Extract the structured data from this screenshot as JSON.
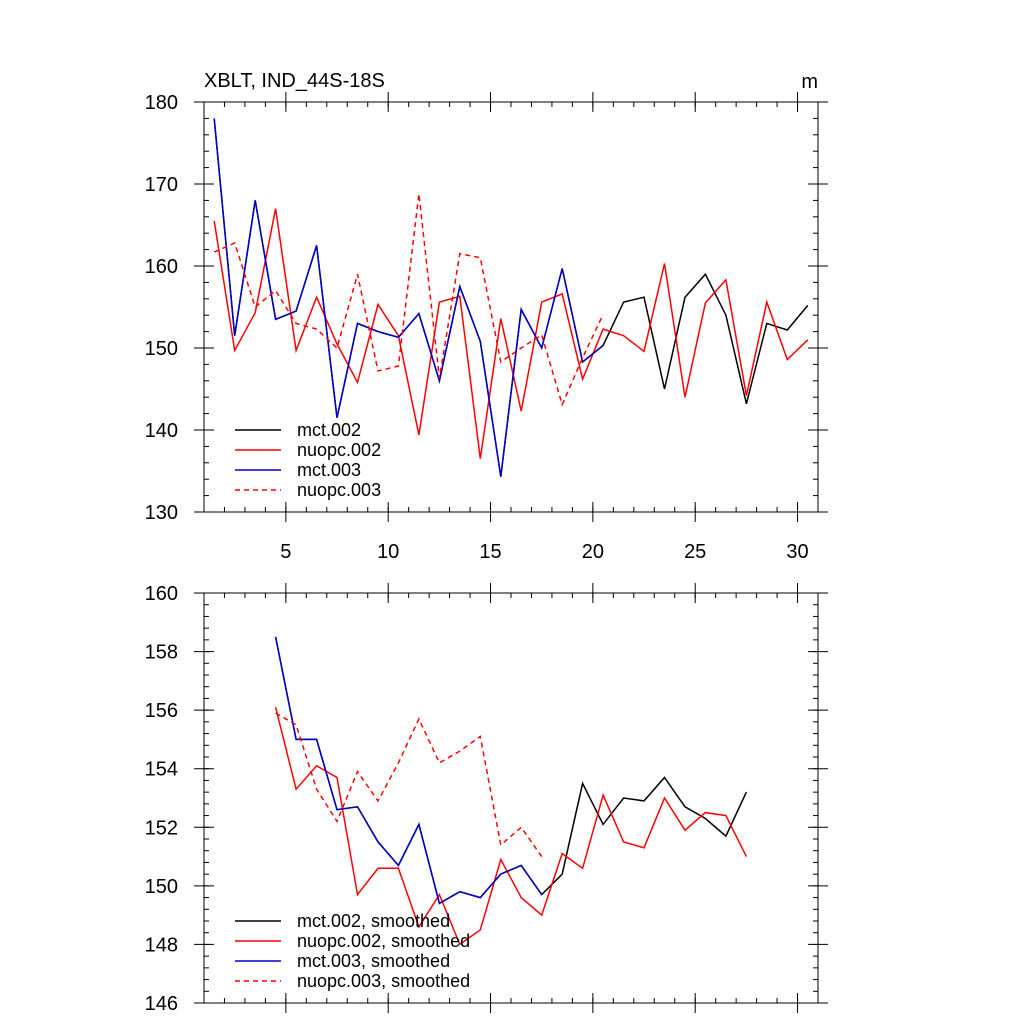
{
  "chart_data": [
    {
      "type": "line",
      "title": "XBLT, IND_44S-18S",
      "units": "m",
      "xlabel": "",
      "ylabel": "",
      "xlim": [
        1,
        31
      ],
      "ylim": [
        130,
        180
      ],
      "xticks": [
        5,
        10,
        15,
        20,
        25,
        30
      ],
      "yticks": [
        130,
        140,
        150,
        160,
        170,
        180
      ],
      "legend_position": "bottom-left",
      "series": [
        {
          "name": "mct.002",
          "color": "#000000",
          "dash": "solid",
          "x": [
            1.5,
            2.5,
            3.5,
            4.5,
            5.5,
            6.5,
            7.5,
            8.5,
            9.5,
            10.5,
            11.5,
            12.5,
            13.5,
            14.5,
            15.5,
            16.5,
            17.5,
            18.5,
            19.5,
            20.5,
            21.5,
            22.5,
            23.5,
            24.5,
            25.5,
            26.5,
            27.5,
            28.5,
            29.5,
            30.5
          ],
          "y": [
            178,
            151.5,
            168,
            153.5,
            154.5,
            162.5,
            141.5,
            153,
            152,
            151.3,
            154.2,
            146,
            157.5,
            150.8,
            134.3,
            154.7,
            150,
            159.7,
            148.3,
            150.3,
            155.6,
            156.2,
            145,
            156.2,
            159,
            154,
            143.2,
            153,
            152.2,
            155.2
          ]
        },
        {
          "name": "nuopc.002",
          "color": "#ff0000",
          "dash": "solid",
          "x": [
            1.5,
            2.5,
            3.5,
            4.5,
            5.5,
            6.5,
            7.5,
            8.5,
            9.5,
            10.5,
            11.5,
            12.5,
            13.5,
            14.5,
            15.5,
            16.5,
            17.5,
            18.5,
            19.5,
            20.5,
            21.5,
            22.5,
            23.5,
            24.5,
            25.5,
            26.5,
            27.5,
            28.5,
            29.5,
            30.5
          ],
          "y": [
            165.5,
            149.7,
            154.3,
            167,
            149.7,
            156.2,
            150.5,
            145.8,
            155.3,
            151.5,
            139.4,
            155.6,
            156.3,
            136.5,
            153.6,
            142.3,
            155.6,
            156.6,
            146.2,
            152.3,
            151.5,
            149.6,
            160.3,
            144,
            155.5,
            158.3,
            144.2,
            155.6,
            148.6,
            151
          ]
        },
        {
          "name": "mct.003",
          "color": "#0000cc",
          "dash": "solid",
          "x": [
            1.5,
            2.5,
            3.5,
            4.5,
            5.5,
            6.5,
            7.5,
            8.5,
            9.5,
            10.5,
            11.5,
            12.5,
            13.5,
            14.5,
            15.5,
            16.5,
            17.5,
            18.5,
            19.5,
            20.5
          ],
          "y": [
            178,
            151.5,
            168,
            153.5,
            154.5,
            162.5,
            141.5,
            153,
            152,
            151.3,
            154.2,
            146,
            157.5,
            150.8,
            134.3,
            154.7,
            150,
            159.7,
            148.3,
            150.3
          ]
        },
        {
          "name": "nuopc.003",
          "color": "#ff0000",
          "dash": "dashed",
          "x": [
            1.5,
            2.5,
            3.5,
            4.5,
            5.5,
            6.5,
            7.5,
            8.5,
            9.5,
            10.5,
            11.5,
            12.5,
            13.5,
            14.5,
            15.5,
            16.5,
            17.5,
            18.5,
            19.5,
            20.5
          ],
          "y": [
            161.7,
            162.8,
            155,
            157,
            153,
            152.3,
            150,
            159,
            147.2,
            147.8,
            168.8,
            146.3,
            161.5,
            161,
            148.3,
            150,
            151.6,
            143.1,
            148.8,
            154.1
          ]
        }
      ]
    },
    {
      "type": "line",
      "title": "",
      "xlabel": "",
      "ylabel": "",
      "xlim": [
        1,
        31
      ],
      "ylim": [
        146,
        160
      ],
      "xticks": [
        5,
        10,
        15,
        20,
        25,
        30
      ],
      "yticks": [
        146,
        148,
        150,
        152,
        154,
        156,
        158,
        160
      ],
      "legend_position": "bottom-left",
      "series": [
        {
          "name": "mct.002, smoothed",
          "color": "#000000",
          "dash": "solid",
          "x": [
            4.5,
            5.5,
            6.5,
            7.5,
            8.5,
            9.5,
            10.5,
            11.5,
            12.5,
            13.5,
            14.5,
            15.5,
            16.5,
            17.5,
            18.5,
            19.5,
            20.5,
            21.5,
            22.5,
            23.5,
            24.5,
            25.5,
            26.5,
            27.5
          ],
          "y": [
            158.5,
            155,
            155,
            152.6,
            152.7,
            151.5,
            150.7,
            152.1,
            149.4,
            149.8,
            149.6,
            150.4,
            150.7,
            149.7,
            150.4,
            153.5,
            152.1,
            153,
            152.9,
            153.7,
            152.7,
            152.3,
            151.7,
            153.2
          ]
        },
        {
          "name": "nuopc.002, smoothed",
          "color": "#ff0000",
          "dash": "solid",
          "x": [
            4.5,
            5.5,
            6.5,
            7.5,
            8.5,
            9.5,
            10.5,
            11.5,
            12.5,
            13.5,
            14.5,
            15.5,
            16.5,
            17.5,
            18.5,
            19.5,
            20.5,
            21.5,
            22.5,
            23.5,
            24.5,
            25.5,
            26.5,
            27.5
          ],
          "y": [
            156.1,
            153.3,
            154.1,
            153.7,
            149.7,
            150.6,
            150.6,
            148.6,
            149.7,
            148,
            148.5,
            150.9,
            149.6,
            149,
            151.1,
            150.6,
            153.1,
            151.5,
            151.3,
            153,
            151.9,
            152.5,
            152.4,
            151
          ]
        },
        {
          "name": "mct.003, smoothed",
          "color": "#0000cc",
          "dash": "solid",
          "x": [
            4.5,
            5.5,
            6.5,
            7.5,
            8.5,
            9.5,
            10.5,
            11.5,
            12.5,
            13.5,
            14.5,
            15.5,
            16.5,
            17.5
          ],
          "y": [
            158.5,
            155,
            155,
            152.6,
            152.7,
            151.5,
            150.7,
            152.1,
            149.4,
            149.8,
            149.6,
            150.4,
            150.7,
            149.7
          ]
        },
        {
          "name": "nuopc.003, smoothed",
          "color": "#ff0000",
          "dash": "dashed",
          "x": [
            4.5,
            5.5,
            6.5,
            7.5,
            8.5,
            9.5,
            10.5,
            11.5,
            12.5,
            13.5,
            14.5,
            15.5,
            16.5,
            17.5
          ],
          "y": [
            155.9,
            155.5,
            153.3,
            152.2,
            153.9,
            152.9,
            154.2,
            155.7,
            154.2,
            154.6,
            155.1,
            151.4,
            152,
            151
          ]
        }
      ]
    }
  ]
}
